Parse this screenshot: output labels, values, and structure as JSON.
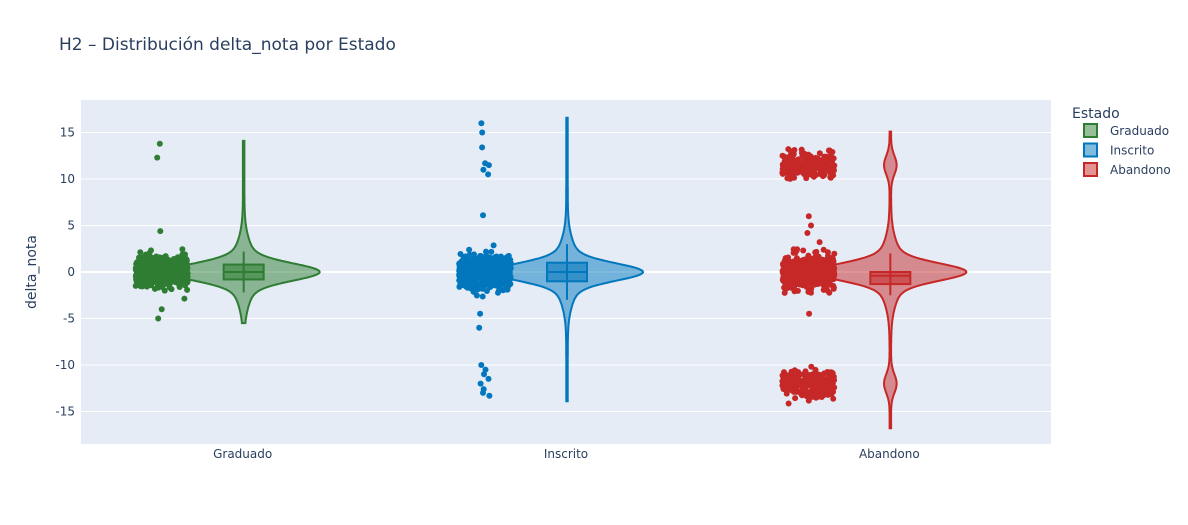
{
  "chart_data": {
    "type": "violin",
    "title": "H2 – Distribución delta_nota por Estado",
    "xlabel": "",
    "ylabel": "delta_nota",
    "categories": [
      "Graduado",
      "Inscrito",
      "Abandono"
    ],
    "ylim": [
      -18.5,
      18.5
    ],
    "yticks": [
      -15,
      -10,
      -5,
      0,
      5,
      10,
      15
    ],
    "grid": true,
    "legend": {
      "title": "Estado",
      "placement": "top-right"
    },
    "points_mode": "all (jittered)",
    "series": [
      {
        "name": "Graduado",
        "color": "#2e7d32",
        "box": {
          "q1": -0.8,
          "median": 0.0,
          "q3": 0.8,
          "whisker_low": -2.2,
          "whisker_high": 2.2
        },
        "violin_range": [
          -5.5,
          14.1
        ],
        "point_clusters": [
          {
            "center": 0,
            "spread": 1.3,
            "min": -3.3,
            "max": 3.2
          }
        ],
        "outliers": [
          13.8,
          12.3,
          4.4,
          -4.0,
          -5.0
        ]
      },
      {
        "name": "Inscrito",
        "color": "#0277bd",
        "box": {
          "q1": -1.0,
          "median": 0.0,
          "q3": 1.0,
          "whisker_low": -3.0,
          "whisker_high": 3.0
        },
        "violin_range": [
          -13.9,
          16.6
        ],
        "point_clusters": [
          {
            "center": 0,
            "spread": 1.4,
            "min": -3.0,
            "max": 3.5
          }
        ],
        "outliers": [
          16.0,
          15.0,
          13.4,
          11.7,
          11.5,
          11.0,
          10.5,
          6.1,
          -4.5,
          -6.0,
          -10.0,
          -10.5,
          -11.0,
          -11.5,
          -12.0,
          -12.6,
          -13.0,
          -13.3
        ]
      },
      {
        "name": "Abandono",
        "color": "#c62828",
        "box": {
          "q1": -1.3,
          "median": -0.4,
          "q3": 0.0,
          "whisker_low": -2.5,
          "whisker_high": 2.0
        },
        "violin_range": [
          -16.8,
          15.1
        ],
        "point_clusters": [
          {
            "center": 0,
            "spread": 1.4,
            "min": -5.0,
            "max": 3.5
          },
          {
            "center": -12,
            "spread": 1.2,
            "min": -16.0,
            "max": -9.8
          },
          {
            "center": 11.5,
            "spread": 1.2,
            "min": 10.0,
            "max": 14.5
          }
        ],
        "outliers": [
          6.0,
          5.0,
          4.2,
          -4.5
        ]
      }
    ]
  }
}
